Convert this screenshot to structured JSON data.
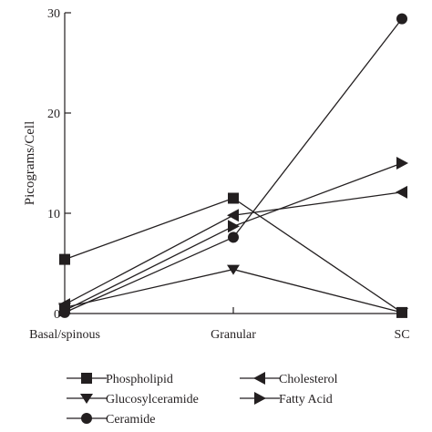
{
  "chart_data": {
    "type": "line",
    "title": "",
    "xlabel": "",
    "ylabel": "Picograms/Cell",
    "categories": [
      "Basal/spinous",
      "Granular",
      "SC"
    ],
    "ylim": [
      0,
      30
    ],
    "yticks": [
      0,
      10,
      20,
      30
    ],
    "grid": false,
    "legend_position": "bottom",
    "series": [
      {
        "name": "Phospholipid",
        "marker": "square",
        "values": [
          5.4,
          11.5,
          0.1
        ]
      },
      {
        "name": "Glucosylceramide",
        "marker": "triangle-down",
        "values": [
          0.6,
          4.4,
          0.1
        ]
      },
      {
        "name": "Ceramide",
        "marker": "circle",
        "values": [
          0.1,
          7.6,
          29.4
        ]
      },
      {
        "name": "Cholesterol",
        "marker": "triangle-left",
        "values": [
          0.9,
          9.8,
          12.1
        ]
      },
      {
        "name": "Fatty Acid",
        "marker": "triangle-right",
        "values": [
          0.3,
          8.7,
          15.0
        ]
      }
    ]
  }
}
